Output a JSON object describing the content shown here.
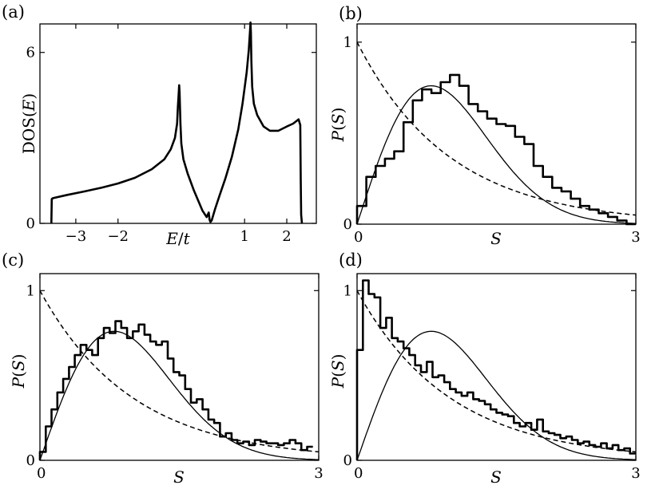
{
  "chart_data": [
    {
      "panel": "(a)",
      "type": "line",
      "xlabel": "E/t",
      "ylabel": "DOS(E)",
      "xlim": [
        -3.85,
        2.7
      ],
      "ylim": [
        0,
        7.0
      ],
      "xtick_labels": [
        "−3",
        "−2",
        "1",
        "2"
      ],
      "xticks": [
        -3,
        -2,
        1,
        2
      ],
      "ytick_labels": [
        "0",
        "6"
      ],
      "yticks": [
        0,
        6
      ],
      "series": [
        {
          "name": "DOS",
          "x": [
            -3.58,
            -3.57,
            -3.55,
            -3.5,
            -3.2,
            -2.8,
            -2.4,
            -2.0,
            -1.6,
            -1.2,
            -0.9,
            -0.75,
            -0.65,
            -0.6,
            -0.58,
            -0.56,
            -0.55,
            -0.54,
            -0.52,
            -0.5,
            -0.45,
            -0.35,
            -0.2,
            0.0,
            0.1,
            0.15,
            0.17,
            0.19,
            0.22,
            0.3,
            0.4,
            0.55,
            0.7,
            0.85,
            0.95,
            1.05,
            1.1,
            1.13,
            1.14,
            1.15,
            1.16,
            1.18,
            1.22,
            1.3,
            1.45,
            1.6,
            1.8,
            2.0,
            2.15,
            2.28,
            2.32,
            2.33,
            2.34,
            2.36
          ],
          "y": [
            0.0,
            0.85,
            0.88,
            0.9,
            1.0,
            1.12,
            1.25,
            1.4,
            1.6,
            1.9,
            2.25,
            2.6,
            3.0,
            3.5,
            4.1,
            4.6,
            4.85,
            4.6,
            3.5,
            2.8,
            2.25,
            1.75,
            1.15,
            0.45,
            0.22,
            0.38,
            0.12,
            0.05,
            0.1,
            0.5,
            0.95,
            1.6,
            2.35,
            3.3,
            4.2,
            5.3,
            6.1,
            6.8,
            7.05,
            6.7,
            5.7,
            4.8,
            4.2,
            3.8,
            3.4,
            3.25,
            3.25,
            3.4,
            3.5,
            3.65,
            3.45,
            1.5,
            0.3,
            0.0
          ]
        }
      ]
    },
    {
      "panel": "(b)",
      "type": "line",
      "xlabel": "S",
      "ylabel": "P(S)",
      "xlim": [
        0,
        3
      ],
      "ylim": [
        0,
        1.1
      ],
      "xtick_labels": [
        "0",
        "3"
      ],
      "xticks": [
        0,
        3
      ],
      "ytick_labels": [
        "0",
        "1"
      ],
      "yticks": [
        0,
        1
      ],
      "series": [
        {
          "name": "histogram",
          "bin_width": 0.1,
          "values": [
            0.1,
            0.26,
            0.32,
            0.36,
            0.4,
            0.56,
            0.68,
            0.74,
            0.72,
            0.78,
            0.82,
            0.76,
            0.66,
            0.62,
            0.58,
            0.55,
            0.54,
            0.48,
            0.44,
            0.32,
            0.26,
            0.2,
            0.18,
            0.14,
            0.1,
            0.08,
            0.06,
            0.04,
            0.02,
            0.0
          ]
        },
        {
          "name": "Wigner-Dyson",
          "curve": "wigner"
        },
        {
          "name": "Poisson",
          "curve": "poisson"
        }
      ]
    },
    {
      "panel": "(c)",
      "type": "line",
      "xlabel": "S",
      "ylabel": "P(S)",
      "xlim": [
        0,
        3
      ],
      "ylim": [
        0,
        1.1
      ],
      "xtick_labels": [
        "0",
        "3"
      ],
      "xticks": [
        0,
        3
      ],
      "ytick_labels": [
        "0",
        "1"
      ],
      "yticks": [
        0,
        1
      ],
      "series": [
        {
          "name": "histogram",
          "bin_width": 0.0625,
          "values": [
            0.05,
            0.2,
            0.3,
            0.4,
            0.48,
            0.55,
            0.62,
            0.68,
            0.65,
            0.62,
            0.72,
            0.78,
            0.75,
            0.82,
            0.78,
            0.72,
            0.76,
            0.8,
            0.74,
            0.7,
            0.68,
            0.7,
            0.6,
            0.52,
            0.5,
            0.42,
            0.34,
            0.36,
            0.3,
            0.24,
            0.22,
            0.14,
            0.16,
            0.12,
            0.1,
            0.11,
            0.09,
            0.12,
            0.11,
            0.1,
            0.1,
            0.09,
            0.1,
            0.12,
            0.1,
            0.06,
            0.08
          ]
        },
        {
          "name": "Wigner-Dyson",
          "curve": "wigner"
        },
        {
          "name": "Poisson",
          "curve": "poisson"
        }
      ]
    },
    {
      "panel": "(d)",
      "type": "line",
      "xlabel": "S",
      "ylabel": "P(S)",
      "xlim": [
        0,
        3
      ],
      "ylim": [
        0,
        1.1
      ],
      "xtick_labels": [
        "0",
        "3"
      ],
      "xticks": [
        0,
        3
      ],
      "ytick_labels": [
        "0",
        "1"
      ],
      "yticks": [
        0,
        1
      ],
      "series": [
        {
          "name": "histogram",
          "bin_width": 0.0625,
          "values": [
            0.65,
            1.06,
            0.98,
            0.96,
            0.78,
            0.84,
            0.72,
            0.7,
            0.66,
            0.62,
            0.56,
            0.52,
            0.58,
            0.49,
            0.5,
            0.46,
            0.42,
            0.4,
            0.38,
            0.4,
            0.36,
            0.35,
            0.33,
            0.3,
            0.28,
            0.27,
            0.26,
            0.22,
            0.2,
            0.22,
            0.18,
            0.24,
            0.17,
            0.16,
            0.15,
            0.13,
            0.14,
            0.12,
            0.1,
            0.11,
            0.09,
            0.08,
            0.1,
            0.07,
            0.09,
            0.06,
            0.07,
            0.04
          ]
        },
        {
          "name": "Wigner-Dyson",
          "curve": "wigner"
        },
        {
          "name": "Poisson",
          "curve": "poisson"
        }
      ]
    }
  ]
}
